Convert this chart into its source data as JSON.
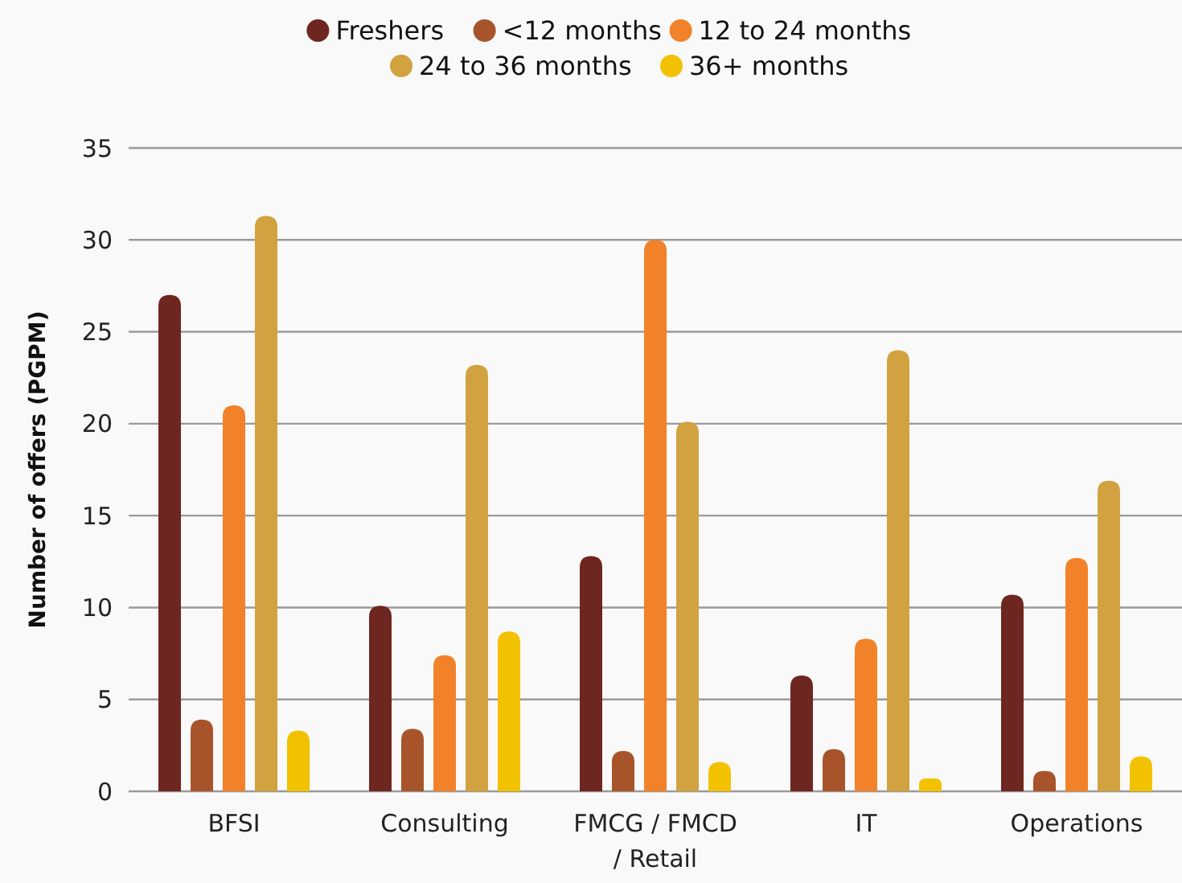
{
  "chart_data": {
    "type": "bar",
    "ylabel": "Number of offers (PGPM)",
    "categories": [
      "BFSI",
      "Consulting",
      "FMCG / FMCD / Retail",
      "IT",
      "Operations"
    ],
    "series": [
      {
        "name": "Freshers",
        "color": "#6e2620",
        "values": [
          27.0,
          10.1,
          12.8,
          6.3,
          10.7
        ]
      },
      {
        "name": "<12 months",
        "color": "#a8542b",
        "values": [
          3.9,
          3.4,
          2.2,
          2.3,
          1.1
        ]
      },
      {
        "name": "12 to 24 months",
        "color": "#f28229",
        "values": [
          21.0,
          7.4,
          30.0,
          8.3,
          12.7
        ]
      },
      {
        "name": "24 to 36 months",
        "color": "#d1a23f",
        "values": [
          31.3,
          23.2,
          20.1,
          24.0,
          16.9
        ]
      },
      {
        "name": "36+ months",
        "color": "#f2c200",
        "values": [
          3.3,
          8.7,
          1.6,
          0.7,
          1.9
        ]
      }
    ],
    "ylim": [
      0,
      35
    ],
    "yticks": [
      0,
      5,
      10,
      15,
      20,
      25,
      30,
      35
    ],
    "grid": "y",
    "legend": "top"
  }
}
